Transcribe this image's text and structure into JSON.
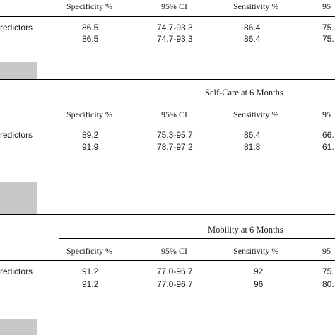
{
  "sections": [
    {
      "title": "",
      "headers": [
        "Specificity %",
        "95% CI",
        "Sensitivity %",
        "95"
      ],
      "label": "redictors",
      "rows": [
        [
          "86.5",
          "74.7-93.3",
          "86.4",
          "75."
        ],
        [
          "86.5",
          "74.7-93.3",
          "86.4",
          "75."
        ]
      ]
    },
    {
      "title": "Self-Care at 6 Months",
      "headers": [
        "Specificity %",
        "95% CI",
        "Sensitivity %",
        "95"
      ],
      "label": "redictors",
      "rows": [
        [
          "89.2",
          "75.3-95.7",
          "86.4",
          "66."
        ],
        [
          "91.9",
          "78.7-97.2",
          "81.8",
          "61."
        ]
      ]
    },
    {
      "title": "Mobility at 6 Months",
      "headers": [
        "Specificity %",
        "95% CI",
        "Sensitivity %",
        "95"
      ],
      "label": "redictors",
      "rows": [
        [
          "91.2",
          "77.0-96.7",
          "92",
          "75."
        ],
        [
          "91.2",
          "77.0-96.7",
          "96",
          "80."
        ]
      ]
    }
  ]
}
